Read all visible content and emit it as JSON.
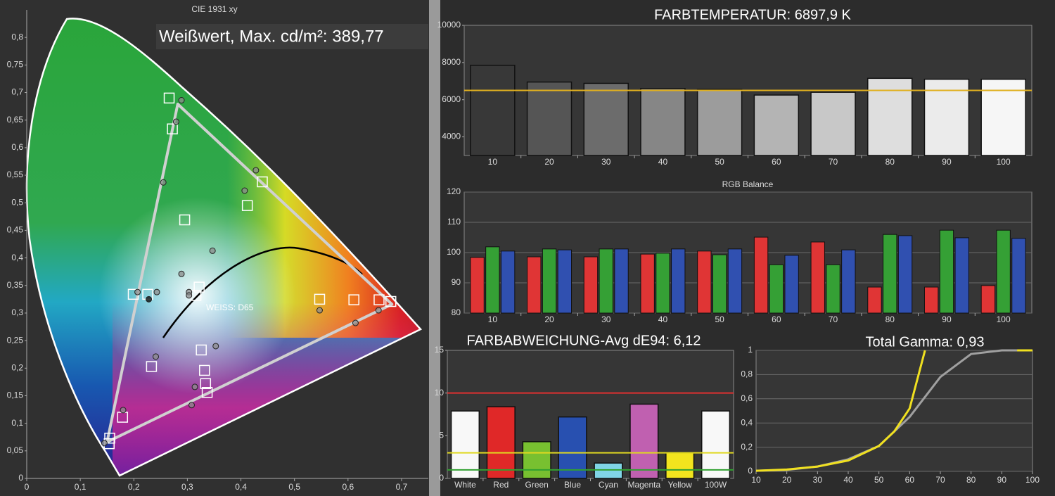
{
  "chart_data": [
    {
      "type": "scatter",
      "title": "CIE 1931 xy",
      "annotations": [
        "Weißwert, Max. cd/m²: 389,77",
        "WEISS: D65"
      ],
      "xlim": [
        0,
        0.75
      ],
      "ylim": [
        0,
        0.85
      ],
      "xticks": [
        0,
        {
          "value": 0.1,
          "label": "0,1"
        },
        {
          "value": 0.2,
          "label": "0,2"
        },
        {
          "value": 0.3,
          "label": "0,3"
        },
        {
          "value": 0.4,
          "label": "0,4"
        },
        {
          "value": 0.5,
          "label": "0,5"
        },
        {
          "value": 0.6,
          "label": "0,6"
        },
        {
          "value": 0.7,
          "label": "0,7"
        }
      ],
      "yticks": [
        0,
        {
          "value": 0.05,
          "label": "0,05"
        },
        {
          "value": 0.1,
          "label": "0,1"
        },
        {
          "value": 0.15,
          "label": "0,15"
        },
        {
          "value": 0.2,
          "label": "0,2"
        },
        {
          "value": 0.25,
          "label": "0,25"
        },
        {
          "value": 0.3,
          "label": "0,3"
        },
        {
          "value": 0.35,
          "label": "0,35"
        },
        {
          "value": 0.4,
          "label": "0,4"
        },
        {
          "value": 0.45,
          "label": "0,45"
        },
        {
          "value": 0.5,
          "label": "0,5"
        },
        {
          "value": 0.55,
          "label": "0,55"
        },
        {
          "value": 0.6,
          "label": "0,6"
        },
        {
          "value": 0.65,
          "label": "0,65"
        },
        {
          "value": 0.7,
          "label": "0,7"
        },
        {
          "value": 0.75,
          "label": "0,75"
        },
        {
          "value": 0.8,
          "label": "0,8"
        }
      ],
      "series": [
        {
          "marker": "polygon",
          "color": "#d0d0d0",
          "x": [
            0.15,
            0.282,
            0.682
          ],
          "values": [
            0.066,
            0.679,
            0.316
          ]
        },
        {
          "marker": "square",
          "color": "#ffffff",
          "x": [
            0.266,
            0.272,
            0.44,
            0.412,
            0.295,
            0.199,
            0.226,
            0.322,
            0.316,
            0.547,
            0.611,
            0.658,
            0.68,
            0.326,
            0.233,
            0.332,
            0.334,
            0.337,
            0.179,
            0.155,
            0.154
          ],
          "values": [
            0.69,
            0.634,
            0.538,
            0.495,
            0.469,
            0.334,
            0.334,
            0.347,
            0.332,
            0.325,
            0.324,
            0.324,
            0.321,
            0.233,
            0.203,
            0.196,
            0.172,
            0.156,
            0.111,
            0.073,
            0.063
          ]
        },
        {
          "marker": "circle",
          "color": "#8c8c8c",
          "x": [
            0.289,
            0.279,
            0.255,
            0.428,
            0.407,
            0.347,
            0.289,
            0.207,
            0.243,
            0.303,
            0.303,
            0.547,
            0.614,
            0.657,
            0.353,
            0.241,
            0.314,
            0.308,
            0.18,
            0.145
          ],
          "values": [
            0.686,
            0.647,
            0.537,
            0.559,
            0.522,
            0.413,
            0.371,
            0.338,
            0.338,
            0.338,
            0.332,
            0.305,
            0.282,
            0.305,
            0.24,
            0.221,
            0.166,
            0.133,
            0.124,
            0.064
          ]
        },
        {
          "marker": "circle",
          "color": "#000000",
          "x": [
            0.228
          ],
          "values": [
            0.325
          ]
        }
      ]
    },
    {
      "type": "bar",
      "title": "FARBTEMPERATUR: 6897,9 K",
      "categories": [
        "10",
        "20",
        "30",
        "40",
        "50",
        "60",
        "70",
        "80",
        "90",
        "100"
      ],
      "values": [
        7850,
        6950,
        6880,
        6600,
        6550,
        6250,
        6400,
        7150,
        7100,
        7100
      ],
      "colors": [
        "#383838",
        "#555555",
        "#6c6c6c",
        "#868686",
        "#9c9c9c",
        "#b4b4b4",
        "#c8c8c8",
        "#dedede",
        "#ebebeb",
        "#f6f6f6"
      ],
      "ylim": [
        3000,
        10000
      ],
      "yticks": [
        4000,
        6000,
        8000,
        10000
      ],
      "grid": false,
      "reference_lines": [
        {
          "value": 6500,
          "color": "#e0b020"
        }
      ]
    },
    {
      "type": "grouped_bar",
      "title": "RGB Balance",
      "categories": [
        "10",
        "20",
        "30",
        "40",
        "50",
        "60",
        "70",
        "80",
        "90",
        "100"
      ],
      "series": [
        {
          "color": "#e03535",
          "values": [
            98.4,
            98.6,
            98.6,
            99.5,
            100.5,
            105.1,
            103.5,
            88.6,
            88.6,
            89.1
          ]
        },
        {
          "color": "#35a035",
          "values": [
            101.9,
            101.2,
            101.2,
            99.8,
            99.3,
            96,
            96,
            106,
            107.4,
            107.4
          ]
        },
        {
          "color": "#3050b0",
          "values": [
            100.5,
            100.9,
            101.2,
            101.2,
            101.2,
            99.1,
            100.9,
            105.6,
            104.9,
            104.7
          ]
        }
      ],
      "ylim": [
        80,
        120
      ],
      "yticks": [
        80,
        90,
        100,
        110,
        120
      ],
      "grid": true
    },
    {
      "type": "bar",
      "title": "FARBABWEICHUNG-Avg dE94: 6,12",
      "categories": [
        "White",
        "Red",
        "Green",
        "Blue",
        "Cyan",
        "Magenta",
        "Yellow",
        "100W"
      ],
      "values": [
        7.9,
        8.4,
        4.3,
        7.2,
        1.8,
        8.7,
        3,
        7.9
      ],
      "colors": [
        "#f8f8f8",
        "#e02828",
        "#78c030",
        "#2850b0",
        "#80d4e6",
        "#c060b0",
        "#f2e41e",
        "#f8f8f8"
      ],
      "ylim": [
        0,
        15
      ],
      "yticks": [
        0,
        5,
        10,
        15
      ],
      "grid": false,
      "reference_lines": [
        {
          "value": 10,
          "color": "#e03030"
        },
        {
          "value": 3,
          "color": "#e0d820"
        },
        {
          "value": 1,
          "color": "#30a030"
        }
      ]
    },
    {
      "type": "line",
      "title": "Total Gamma: 0,93",
      "series": [
        {
          "color": "#a0a0a0",
          "x": [
            10,
            20,
            30,
            40,
            50,
            60,
            70,
            80,
            90,
            100
          ],
          "values": [
            0.005,
            0.012,
            0.04,
            0.1,
            0.21,
            0.45,
            0.78,
            0.97,
            1,
            1
          ]
        },
        {
          "color": "#f0e020",
          "x": [
            10,
            20,
            30,
            40,
            50,
            55,
            60,
            65,
            80,
            95,
            100
          ],
          "values": [
            0.005,
            0.015,
            0.04,
            0.09,
            0.21,
            0.33,
            0.52,
            1,
            null,
            1,
            1
          ]
        }
      ],
      "xlim": [
        10,
        100
      ],
      "ylim": [
        0,
        1
      ],
      "xticks": [
        10,
        20,
        30,
        40,
        50,
        60,
        70,
        80,
        90,
        100
      ],
      "yticks": [
        0,
        {
          "value": 0.2,
          "label": "0,2"
        },
        {
          "value": 0.4,
          "label": "0,4"
        },
        {
          "value": 0.6,
          "label": "0,6"
        },
        {
          "value": 0.8,
          "label": "0,8"
        },
        1
      ],
      "grid": true
    }
  ]
}
